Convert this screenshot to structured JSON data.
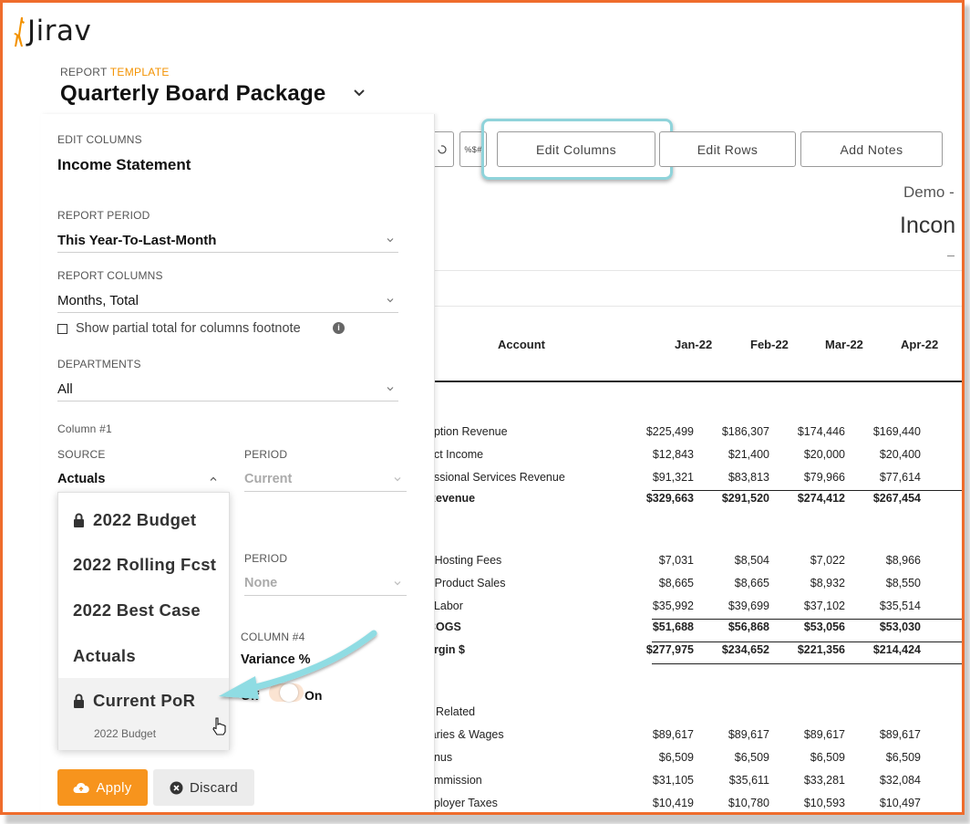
{
  "brand": {
    "logo_text": "Jirav",
    "accent": "#f7941d",
    "frame_color": "#ef6c2c"
  },
  "header": {
    "report_label": "REPORT",
    "template_label": "TEMPLATE",
    "title": "Quarterly Board Package"
  },
  "toolbar": {
    "edit_columns": "Edit Columns",
    "edit_rows": "Edit Rows",
    "add_notes": "Add Notes"
  },
  "report": {
    "company": "Demo -",
    "statement": "Incon",
    "columns": [
      "Account",
      "Jan-22",
      "Feb-22",
      "Mar-22",
      "Apr-22"
    ],
    "rows": [
      {
        "account": "ription Revenue",
        "values": [
          "$225,499",
          "$186,307",
          "$174,446",
          "$169,440"
        ]
      },
      {
        "account": "uct Income",
        "values": [
          "$12,843",
          "$21,400",
          "$20,000",
          "$20,400"
        ]
      },
      {
        "account": "essional Services Revenue",
        "values": [
          "$91,321",
          "$83,813",
          "$79,966",
          "$77,614"
        ]
      },
      {
        "account": "Revenue",
        "values": [
          "$329,663",
          "$291,520",
          "$274,412",
          "$267,454"
        ],
        "total": true
      },
      {
        "account": "- Hosting Fees",
        "values": [
          "$7,031",
          "$8,504",
          "$7,022",
          "$8,966"
        ]
      },
      {
        "account": "- Product Sales",
        "values": [
          "$8,665",
          "$8,665",
          "$8,932",
          "$8,550"
        ]
      },
      {
        "account": "t Labor",
        "values": [
          "$35,992",
          "$39,699",
          "$37,102",
          "$35,514"
        ]
      },
      {
        "account": "COGS",
        "values": [
          "$51,688",
          "$56,868",
          "$53,056",
          "$53,030"
        ],
        "total": true
      },
      {
        "account": "argin $",
        "values": [
          "$277,975",
          "$234,652",
          "$221,356",
          "$214,424"
        ],
        "total": true
      },
      {
        "account": "ll Related",
        "values": [
          "",
          "",
          "",
          ""
        ]
      },
      {
        "account": "laries & Wages",
        "values": [
          "$89,617",
          "$89,617",
          "$89,617",
          "$89,617"
        ]
      },
      {
        "account": "onus",
        "values": [
          "$6,509",
          "$6,509",
          "$6,509",
          "$6,509"
        ]
      },
      {
        "account": "ommission",
        "values": [
          "$31,105",
          "$35,611",
          "$33,281",
          "$32,084"
        ]
      },
      {
        "account": "nployer Taxes",
        "values": [
          "$10,419",
          "$10,780",
          "$10,593",
          "$10,497"
        ]
      }
    ]
  },
  "panel": {
    "edit_columns_label": "EDIT COLUMNS",
    "edit_columns_value": "Income Statement",
    "report_period_label": "REPORT PERIOD",
    "report_period_value": "This Year-To-Last-Month",
    "report_columns_label": "REPORT COLUMNS",
    "report_columns_value": "Months, Total",
    "partial_total_label": "Show partial total for columns footnote",
    "departments_label": "DEPARTMENTS",
    "departments_value": "All",
    "column1_label": "Column #1",
    "source_label": "SOURCE",
    "source_value": "Actuals",
    "period_label": "PERIOD",
    "period_value": "Current",
    "period2_label": "PERIOD",
    "period2_value": "None",
    "column4_label": "COLUMN #4",
    "column4_value": "Variance %",
    "toggle_off": "Off",
    "toggle_on": "On",
    "apply": "Apply",
    "discard": "Discard"
  },
  "dropdown": {
    "items": [
      {
        "label": "2022 Budget",
        "locked": true
      },
      {
        "label": "2022 Rolling Fcst",
        "locked": false
      },
      {
        "label": "2022 Best Case",
        "locked": false
      },
      {
        "label": "Actuals",
        "locked": false
      },
      {
        "label": "Current PoR",
        "locked": true
      }
    ],
    "hovered_sub": "2022 Budget"
  }
}
